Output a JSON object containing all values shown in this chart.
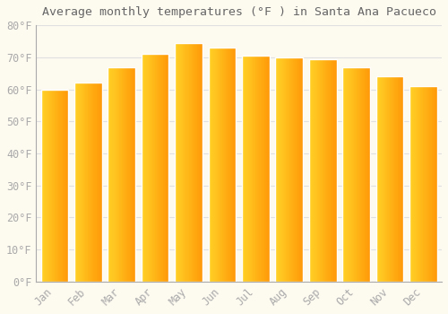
{
  "title": "Average monthly temperatures (°F ) in Santa Ana Pacueco",
  "months": [
    "Jan",
    "Feb",
    "Mar",
    "Apr",
    "May",
    "Jun",
    "Jul",
    "Aug",
    "Sep",
    "Oct",
    "Nov",
    "Dec"
  ],
  "temperatures": [
    60,
    62,
    67,
    71,
    74.5,
    73,
    70.5,
    70,
    69.5,
    67,
    64,
    61
  ],
  "bar_color_left": "#FFD040",
  "bar_color_right": "#FFA020",
  "bar_edge_color": "#FFFFFF",
  "background_color": "#FDFAF0",
  "grid_color": "#E0E0E0",
  "text_color": "#AAAAAA",
  "title_color": "#666666",
  "ylim": [
    0,
    80
  ],
  "yticks": [
    0,
    10,
    20,
    30,
    40,
    50,
    60,
    70,
    80
  ],
  "title_fontsize": 9.5,
  "tick_fontsize": 8.5,
  "font_family": "monospace",
  "bar_width": 0.82
}
